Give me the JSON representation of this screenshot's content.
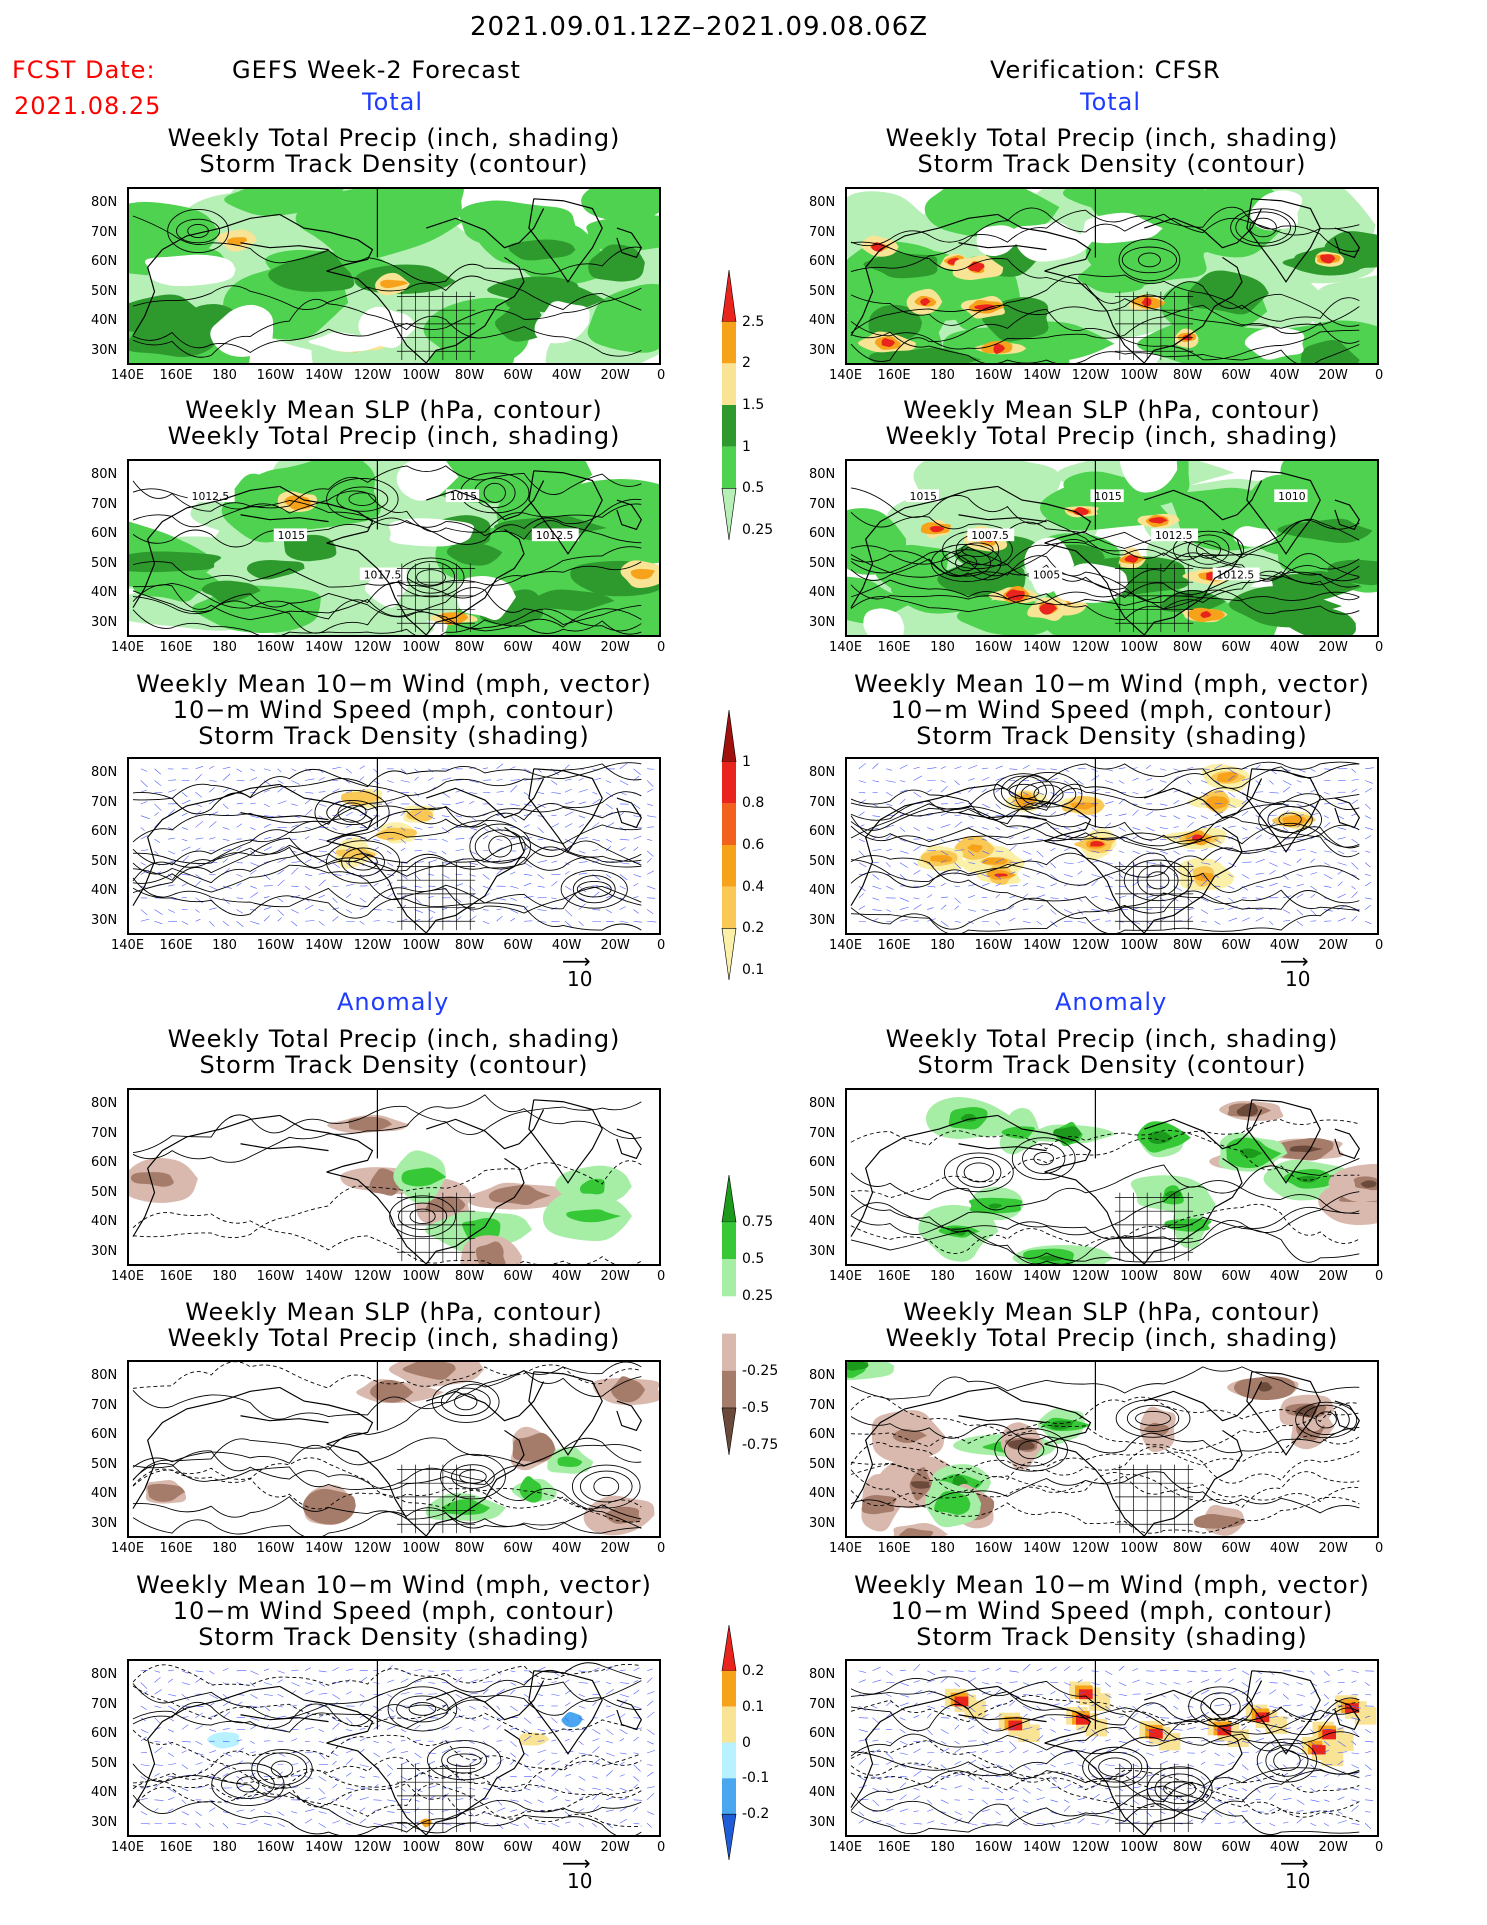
{
  "header": {
    "period": "2021.09.01.12Z–2021.09.08.06Z",
    "fcst_date_label": "FCST Date:",
    "fcst_date_value": "2021.08.25",
    "left_title": "GEFS Week-2 Forecast",
    "right_title": "Verification: CFSR"
  },
  "sections": {
    "total": "Total",
    "anomaly": "Anomaly"
  },
  "panel_titles": {
    "precip_track": [
      "Weekly Total Precip (inch, shading)",
      "Storm Track Density (contour)"
    ],
    "slp_precip": [
      "Weekly Mean SLP (hPa, contour)",
      "Weekly Total Precip (inch, shading)"
    ],
    "wind": [
      "Weekly Mean 10-m Wind (mph, vector)",
      "10-m Wind Speed (mph, contour)",
      "Storm Track Density (shading)"
    ]
  },
  "axes": {
    "lat_labels": [
      "80N",
      "70N",
      "60N",
      "50N",
      "40N",
      "30N"
    ],
    "lon_labels": [
      "140E",
      "160E",
      "180",
      "160W",
      "140W",
      "120W",
      "100W",
      "80W",
      "60W",
      "40W",
      "20W",
      "0"
    ]
  },
  "colorbars": {
    "precip_total": {
      "labels": [
        "2.5",
        "2",
        "1.5",
        "1",
        "0.5",
        "0.25"
      ],
      "colors": [
        "#e8241c",
        "#f7a21b",
        "#f9e394",
        "#2e9a2e",
        "#4fd24f",
        "#b6f0b6"
      ]
    },
    "track_total": {
      "labels": [
        "1",
        "0.8",
        "0.6",
        "0.4",
        "0.2",
        "0.1"
      ],
      "colors": [
        "#a0100c",
        "#e8241c",
        "#f2621e",
        "#f7a21b",
        "#f9c855",
        "#fbf0a8"
      ]
    },
    "precip_anom": {
      "labels": [
        "0.75",
        "0.5",
        "0.25",
        "-0.25",
        "-0.5",
        "-0.75"
      ],
      "colors": [
        "#1c9a1c",
        "#36c836",
        "#a6eea6",
        "#ffffff",
        "#d9b9ad",
        "#a57b6a",
        "#6b4a3c"
      ]
    },
    "track_anom": {
      "labels": [
        "0.2",
        "0.1",
        "0",
        "-0.1",
        "-0.2"
      ],
      "colors": [
        "#e8241c",
        "#f7a21b",
        "#f9e394",
        "#b8f1ff",
        "#4aa6ee",
        "#1f5cd6"
      ]
    }
  },
  "vector_scale": "10",
  "contour_labels": {
    "slp_fcst": [
      "1012.5",
      "1015",
      "1017.5",
      "1015",
      "1012.5"
    ],
    "slp_ver": [
      "1015",
      "1007.5",
      "1005",
      "1015",
      "1012.5",
      "1012.5",
      "1010"
    ]
  }
}
